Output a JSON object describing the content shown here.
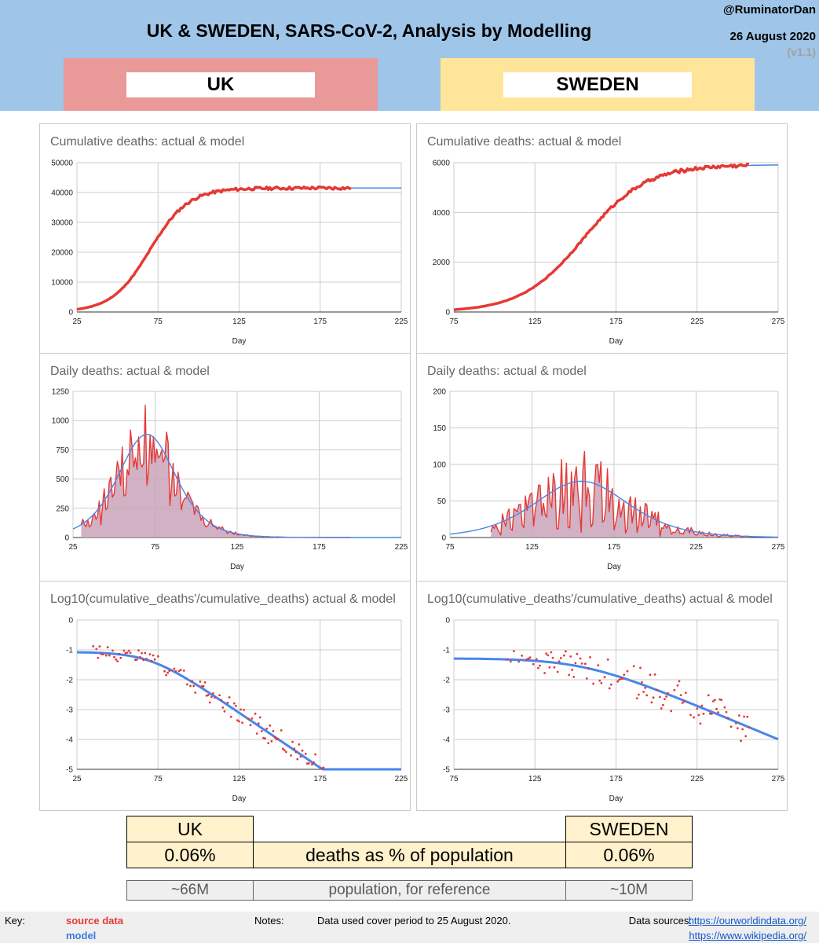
{
  "header": {
    "title": "UK & SWEDEN, SARS-CoV-2, Analysis by Modelling",
    "handle": "@RuminatorDan",
    "date": "26 August 2020",
    "version": "(v1.1)"
  },
  "countries": {
    "uk": "UK",
    "sweden": "SWEDEN"
  },
  "colors": {
    "actual": "#e53935",
    "model": "#4a86e8",
    "fill": "#c9a3b9",
    "uk_block": "#ea9999",
    "sweden_block": "#ffe599",
    "header_bg": "#9fc5e8"
  },
  "chart_data": [
    {
      "id": "uk_cum",
      "type": "line",
      "title": "Cumulative deaths: actual & model",
      "xlabel": "Day",
      "ylabel": "",
      "xlim": [
        25,
        225
      ],
      "ylim": [
        0,
        50000
      ],
      "xticks": [
        25,
        75,
        125,
        175,
        225
      ],
      "yticks": [
        0,
        10000,
        20000,
        30000,
        40000,
        50000
      ],
      "xtick_labels": [
        "25",
        "75",
        "125",
        "175",
        "225"
      ],
      "ytick_labels": [
        "0",
        "10000",
        "20000",
        "30000",
        "40000",
        "50000"
      ],
      "model": {
        "kind": "logistic",
        "K": 41500,
        "r": 0.085,
        "t0": 70,
        "x_range": [
          25,
          225
        ]
      },
      "actual_end": 194
    },
    {
      "id": "se_cum",
      "type": "line",
      "title": "Cumulative deaths: actual & model",
      "xlabel": "Day",
      "ylabel": "",
      "xlim": [
        75,
        275
      ],
      "ylim": [
        0,
        6000
      ],
      "xticks": [
        75,
        125,
        175,
        225,
        275
      ],
      "yticks": [
        0,
        2000,
        4000,
        6000
      ],
      "xtick_labels": [
        "75",
        "125",
        "175",
        "225",
        "275"
      ],
      "ytick_labels": [
        "0",
        "2000",
        "4000",
        "6000"
      ],
      "model": {
        "kind": "logistic",
        "K": 5920,
        "r": 0.052,
        "t0": 155,
        "x_range": [
          75,
          275
        ]
      },
      "actual_end": 257
    },
    {
      "id": "uk_daily",
      "type": "area",
      "title": "Daily deaths: actual & model",
      "xlabel": "Day",
      "ylabel": "",
      "xlim": [
        25,
        225
      ],
      "ylim": [
        0,
        1250
      ],
      "xticks": [
        25,
        75,
        125,
        175,
        225
      ],
      "yticks": [
        0,
        250,
        500,
        750,
        1000,
        1250
      ],
      "xtick_labels": [
        "25",
        "75",
        "125",
        "175",
        "225"
      ],
      "ytick_labels": [
        "0",
        "250",
        "500",
        "750",
        "1000",
        "1250"
      ],
      "model": {
        "kind": "logistic_rate",
        "K": 41500,
        "r": 0.085,
        "t0": 70,
        "x_range": [
          25,
          225
        ]
      },
      "actual": {
        "start": 30,
        "end": 194,
        "noise": 0.35,
        "weekly_dip": 0.45
      }
    },
    {
      "id": "se_daily",
      "type": "area",
      "title": "Daily deaths: actual & model",
      "xlabel": "Day",
      "ylabel": "",
      "xlim": [
        75,
        275
      ],
      "ylim": [
        0,
        200
      ],
      "xticks": [
        75,
        125,
        175,
        225,
        275
      ],
      "yticks": [
        0,
        50,
        100,
        150,
        200
      ],
      "xtick_labels": [
        "75",
        "125",
        "175",
        "225",
        "275"
      ],
      "ytick_labels": [
        "0",
        "50",
        "100",
        "150",
        "200"
      ],
      "model": {
        "kind": "logistic_rate",
        "K": 5920,
        "r": 0.052,
        "t0": 155,
        "x_range": [
          75,
          275
        ]
      },
      "actual": {
        "start": 100,
        "end": 257,
        "noise": 0.55,
        "weekly_dip": 0.9
      }
    },
    {
      "id": "uk_log",
      "type": "scatter",
      "title": "Log10(cumulative_deaths'/cumulative_deaths) actual & model",
      "xlabel": "Day",
      "ylabel": "",
      "xlim": [
        25,
        225
      ],
      "ylim": [
        -5,
        0
      ],
      "xticks": [
        25,
        75,
        125,
        175,
        225
      ],
      "yticks": [
        -5,
        -4,
        -3,
        -2,
        -1,
        0
      ],
      "xtick_labels": [
        "25",
        "75",
        "125",
        "175",
        "225"
      ],
      "ytick_labels": [
        "-5",
        "-4",
        "-3",
        "-2",
        "-1",
        "0"
      ],
      "model": {
        "kind": "log_ratio",
        "K": 41500,
        "r": 0.085,
        "t0": 70,
        "x_range": [
          25,
          225
        ]
      },
      "actual": {
        "start": 35,
        "end": 194,
        "noise": 0.22
      }
    },
    {
      "id": "se_log",
      "type": "scatter",
      "title": "Log10(cumulative_deaths'/cumulative_deaths) actual & model",
      "xlabel": "Day",
      "ylabel": "",
      "xlim": [
        75,
        275
      ],
      "ylim": [
        -5,
        0
      ],
      "xticks": [
        75,
        125,
        175,
        225,
        275
      ],
      "yticks": [
        -5,
        -4,
        -3,
        -2,
        -1,
        0
      ],
      "xtick_labels": [
        "75",
        "125",
        "175",
        "225",
        "275"
      ],
      "ytick_labels": [
        "-5",
        "-4",
        "-3",
        "-2",
        "-1",
        "0"
      ],
      "model": {
        "kind": "log_ratio",
        "K": 5920,
        "r": 0.052,
        "t0": 155,
        "x_range": [
          75,
          275
        ]
      },
      "actual": {
        "start": 108,
        "end": 257,
        "noise": 0.35
      }
    }
  ],
  "summary": {
    "uk_label": "UK",
    "sweden_label": "SWEDEN",
    "uk_pct": "0.06%",
    "sweden_pct": "0.06%",
    "metric": "deaths as % of population",
    "uk_pop": "~66M",
    "sweden_pop": "~10M",
    "pop_label": "population, for reference"
  },
  "footer": {
    "key_label": "Key:",
    "key_source": "source data",
    "key_model": "model",
    "notes_label": "Notes:",
    "notes_text": "Data used cover period to 25 August 2020.",
    "sources_label": "Data sources:",
    "link1": "https://ourworldindata.org/",
    "link2": "https://www.wikipedia.org/"
  }
}
